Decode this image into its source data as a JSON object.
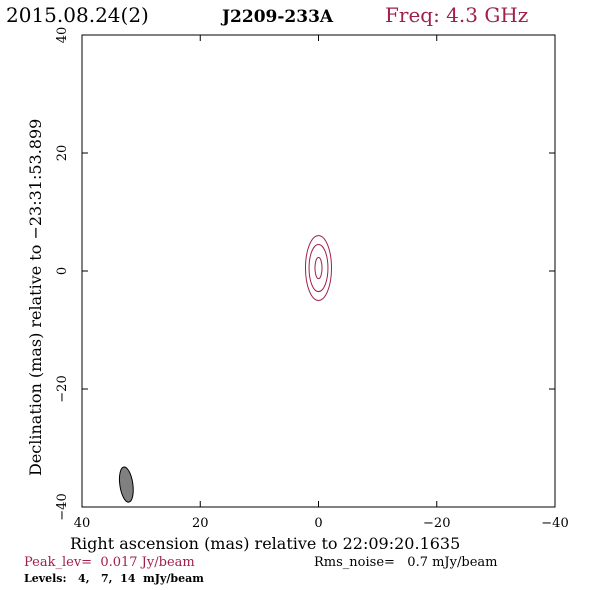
{
  "header": {
    "date": "2015.08.24(2)",
    "source": "J2209-233A",
    "freq": "Freq: 4.3 GHz"
  },
  "colors": {
    "accent": "#a0204a",
    "axis": "#000000",
    "beam_fill": "#808080"
  },
  "chart_data": {
    "type": "contour",
    "xlabel": "Right ascension (mas) relative to 22:09:20.1635",
    "ylabel": "Declination (mas) relative to −23:31:53.899",
    "xlim": [
      40,
      -40
    ],
    "ylim": [
      -40,
      40
    ],
    "x_ticks": [
      40,
      20,
      0,
      -20,
      -40
    ],
    "y_ticks": [
      -40,
      -20,
      0,
      20,
      40
    ],
    "x_tick_labels": [
      "40",
      "20",
      "0",
      "−20",
      "−40"
    ],
    "y_tick_labels": [
      "−40",
      "−20",
      "0",
      "20",
      "40"
    ],
    "contours": [
      {
        "level_mJy": 4,
        "x0": 0,
        "y0": 0.5,
        "rx": 2.2,
        "ry": 5.5
      },
      {
        "level_mJy": 7,
        "x0": 0,
        "y0": 0.5,
        "rx": 1.6,
        "ry": 4.0
      },
      {
        "level_mJy": 14,
        "x0": 0,
        "y0": 0.5,
        "rx": 0.6,
        "ry": 1.8
      }
    ],
    "beam": {
      "x0": 32.5,
      "y0": -36.2,
      "rx": 1.1,
      "ry": 3.0,
      "pa_deg": -8
    }
  },
  "footer": {
    "peak": "Peak_lev=  0.017 Jy/beam",
    "rms": "Rms_noise=   0.7 mJy/beam",
    "levels": "Levels:   4,   7,  14  mJy/beam"
  }
}
